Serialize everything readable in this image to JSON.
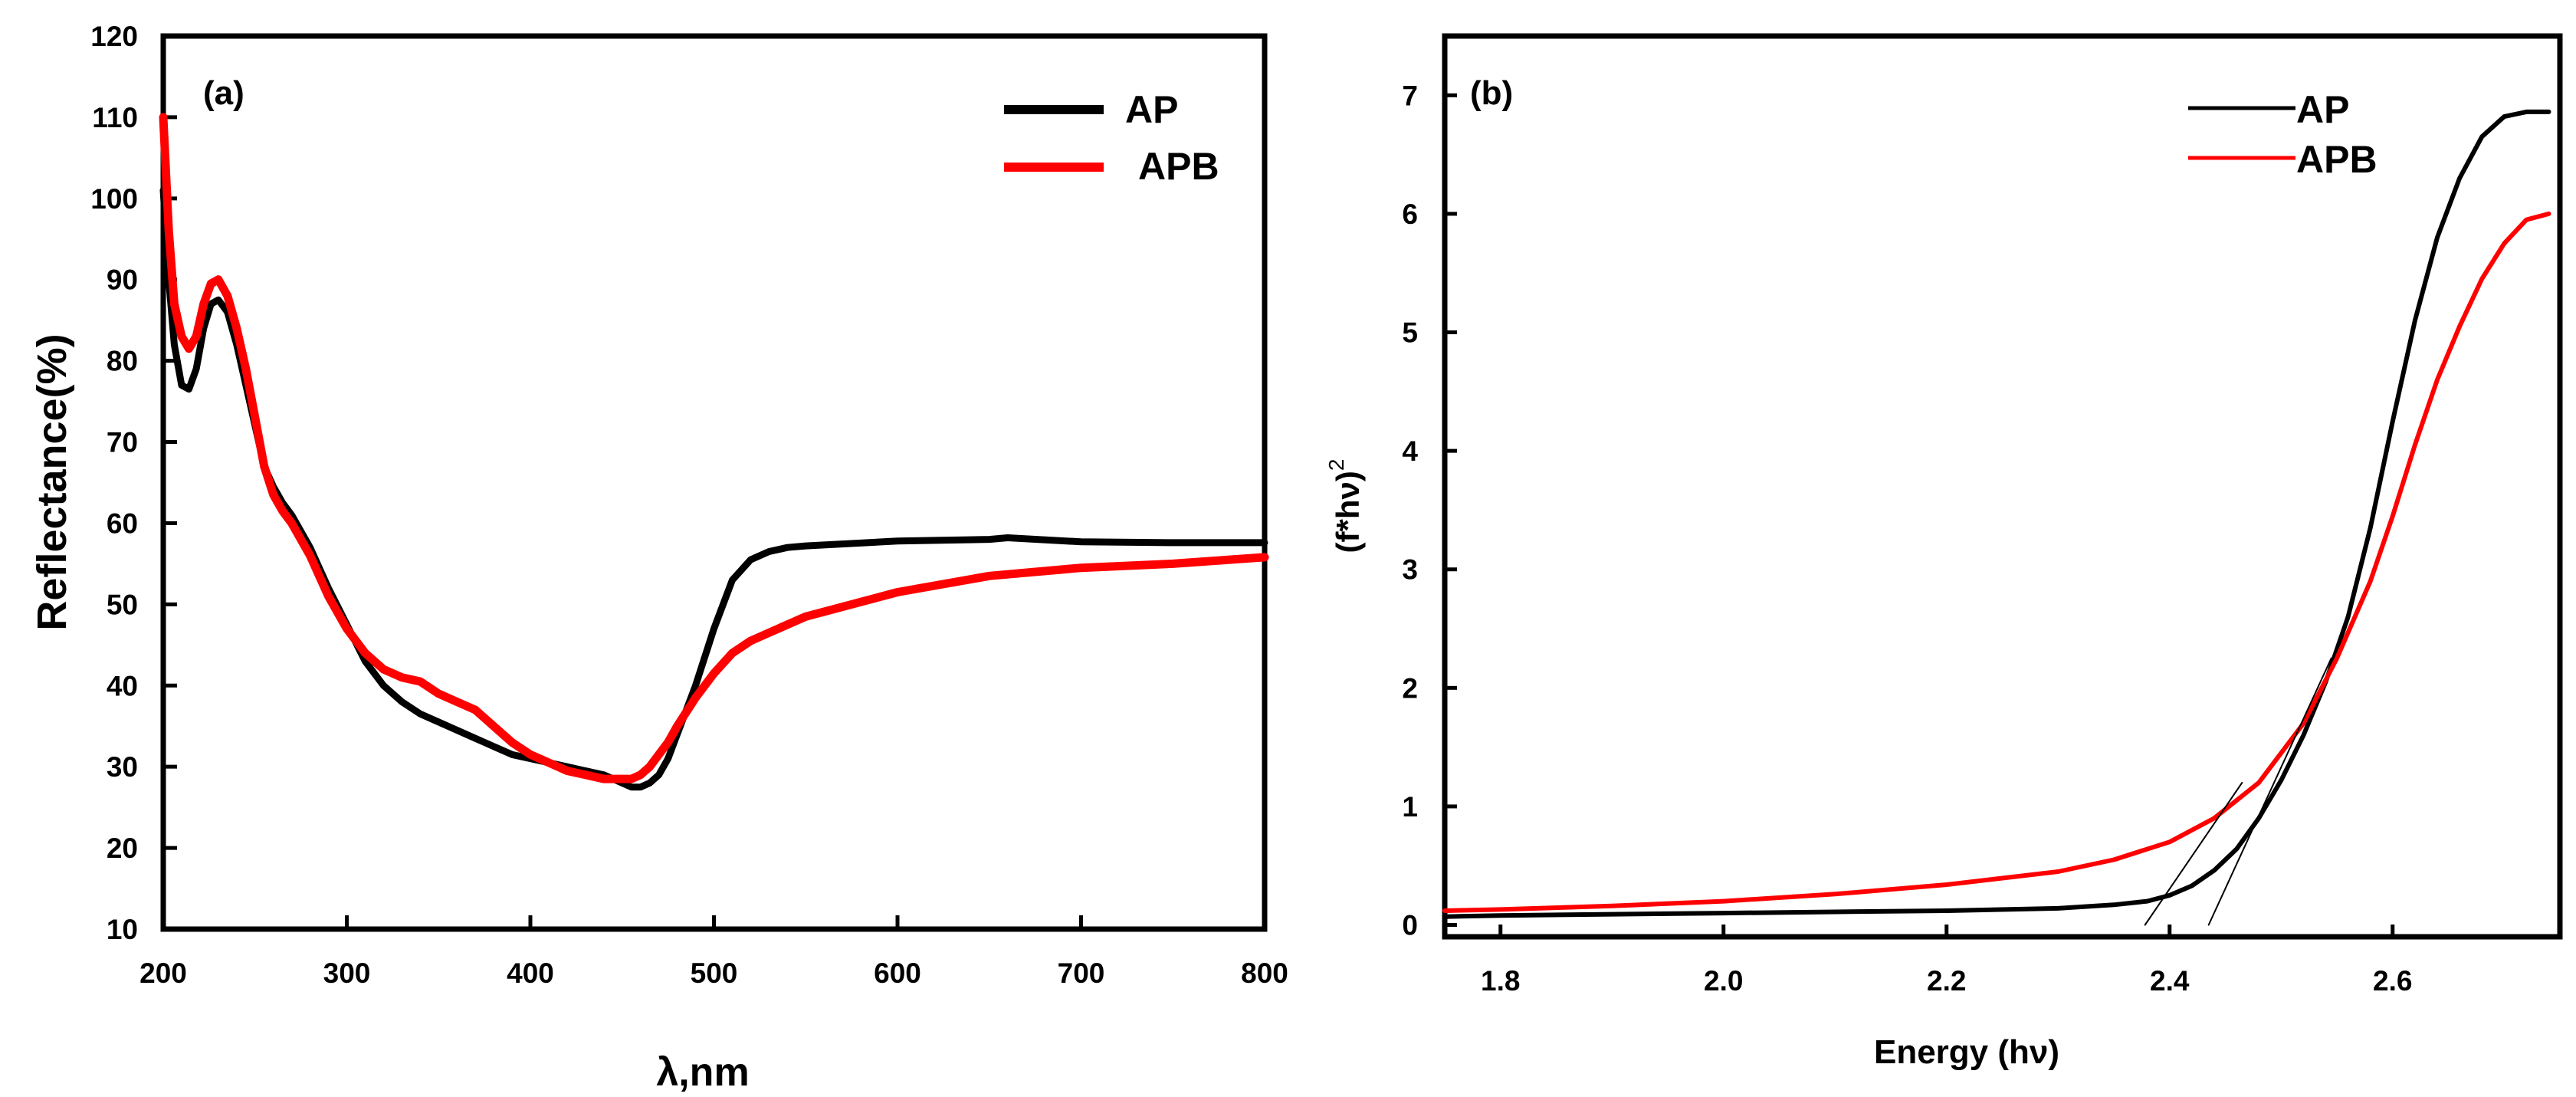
{
  "colors": {
    "AP": "#000000",
    "APB": "#ff0000",
    "axis": "#000000"
  },
  "chart_data": [
    {
      "type": "line",
      "panel_label": "(a)",
      "xlabel": "λ,nm",
      "ylabel": "Reflectance(%)",
      "xlim": [
        200,
        800
      ],
      "ylim": [
        10,
        120
      ],
      "xticks": [
        200,
        300,
        400,
        500,
        600,
        700,
        800
      ],
      "yticks": [
        10,
        20,
        30,
        40,
        50,
        60,
        70,
        80,
        90,
        100,
        110,
        120
      ],
      "legend_position": "top-right",
      "series": [
        {
          "name": "AP",
          "color": "#000000",
          "x": [
            200,
            203,
            206,
            210,
            214,
            218,
            222,
            226,
            230,
            235,
            240,
            245,
            250,
            255,
            260,
            265,
            270,
            280,
            290,
            300,
            310,
            320,
            330,
            340,
            350,
            360,
            370,
            380,
            390,
            400,
            410,
            420,
            430,
            440,
            450,
            455,
            460,
            465,
            470,
            475,
            480,
            490,
            500,
            510,
            520,
            530,
            540,
            550,
            600,
            650,
            660,
            700,
            750,
            800
          ],
          "y": [
            101,
            90,
            82,
            77,
            76.5,
            79,
            84,
            87,
            87.5,
            86,
            82,
            77,
            72,
            67,
            64.5,
            62.5,
            61,
            57,
            52,
            47.5,
            43,
            40,
            38,
            36.5,
            35.5,
            34.5,
            33.5,
            32.5,
            31.5,
            31,
            30.5,
            30,
            29.5,
            29,
            28,
            27.5,
            27.5,
            28,
            29,
            31,
            34,
            40,
            47,
            53,
            55.5,
            56.5,
            57,
            57.2,
            57.8,
            58,
            58.2,
            57.7,
            57.6,
            57.6
          ]
        },
        {
          "name": "APB",
          "color": "#ff0000",
          "x": [
            200,
            203,
            206,
            210,
            214,
            218,
            222,
            226,
            230,
            235,
            240,
            245,
            250,
            255,
            260,
            265,
            270,
            280,
            290,
            300,
            310,
            320,
            330,
            340,
            350,
            360,
            370,
            380,
            390,
            400,
            410,
            420,
            430,
            440,
            450,
            455,
            460,
            465,
            470,
            475,
            480,
            490,
            500,
            510,
            520,
            530,
            540,
            550,
            600,
            650,
            700,
            750,
            800
          ],
          "y": [
            110,
            96,
            87,
            83,
            81.5,
            83,
            87,
            89.5,
            90,
            88,
            84,
            79,
            73,
            67,
            63.5,
            61.5,
            60,
            56,
            51,
            47,
            44,
            42,
            41,
            40.5,
            39,
            38,
            37,
            35,
            33,
            31.5,
            30.5,
            29.5,
            29,
            28.5,
            28.5,
            28.5,
            29,
            30,
            31.5,
            33,
            35,
            38.5,
            41.5,
            44,
            45.5,
            46.5,
            47.5,
            48.5,
            51.5,
            53.5,
            54.5,
            55,
            55.8
          ]
        }
      ]
    },
    {
      "type": "line",
      "panel_label": "(b)",
      "xlabel": "Energy (hν)",
      "ylabel": "(f*hν)",
      "ylabel_superscript": "2",
      "xlim": [
        1.75,
        2.75
      ],
      "ylim": [
        -0.1,
        7.5
      ],
      "xticks": [
        "1.8",
        "2.0",
        "2.2",
        "2.4",
        "2.6"
      ],
      "yticks": [
        "0",
        "1",
        "2",
        "3",
        "4",
        "5",
        "6",
        "7"
      ],
      "legend_position": "top-right",
      "series": [
        {
          "name": "AP",
          "color": "#000000",
          "x": [
            1.75,
            1.8,
            1.9,
            2.0,
            2.1,
            2.2,
            2.3,
            2.35,
            2.38,
            2.4,
            2.42,
            2.44,
            2.46,
            2.48,
            2.5,
            2.52,
            2.54,
            2.56,
            2.58,
            2.6,
            2.62,
            2.64,
            2.66,
            2.68,
            2.7,
            2.72,
            2.74
          ],
          "y": [
            0.07,
            0.08,
            0.09,
            0.1,
            0.11,
            0.12,
            0.14,
            0.17,
            0.2,
            0.25,
            0.33,
            0.46,
            0.64,
            0.9,
            1.22,
            1.6,
            2.05,
            2.6,
            3.35,
            4.25,
            5.1,
            5.8,
            6.3,
            6.65,
            6.82,
            6.86,
            6.86
          ]
        },
        {
          "name": "APB",
          "color": "#ff0000",
          "x": [
            1.75,
            1.8,
            1.9,
            2.0,
            2.1,
            2.2,
            2.3,
            2.35,
            2.4,
            2.44,
            2.48,
            2.52,
            2.55,
            2.58,
            2.6,
            2.62,
            2.64,
            2.66,
            2.68,
            2.7,
            2.72,
            2.74
          ],
          "y": [
            0.12,
            0.13,
            0.16,
            0.2,
            0.26,
            0.34,
            0.45,
            0.55,
            0.7,
            0.9,
            1.2,
            1.7,
            2.25,
            2.9,
            3.45,
            4.05,
            4.6,
            5.05,
            5.45,
            5.75,
            5.95,
            6.0
          ]
        },
        {
          "name": "AP tangent",
          "color": "#000000",
          "x": [
            2.435,
            2.545
          ],
          "y": [
            0.0,
            2.25
          ]
        },
        {
          "name": "APB tangent",
          "color": "#000000",
          "x": [
            2.378,
            2.465
          ],
          "y": [
            0.0,
            1.2
          ]
        }
      ]
    }
  ]
}
